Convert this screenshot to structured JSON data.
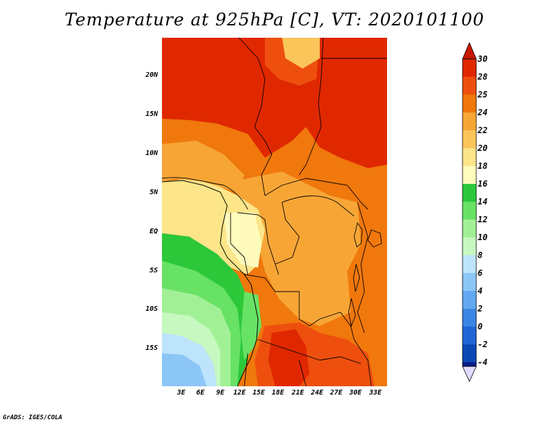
{
  "title": "Temperature at 925hPa [C], VT: 2020101100",
  "footer": "GrADS: IGES/COLA",
  "lat_labels": [
    "20N",
    "15N",
    "10N",
    "5N",
    "EQ",
    "5S",
    "10S",
    "15S"
  ],
  "lon_labels": [
    "3E",
    "6E",
    "9E",
    "12E",
    "15E",
    "18E",
    "21E",
    "24E",
    "27E",
    "30E",
    "33E"
  ],
  "colorbar": {
    "labels": [
      "30",
      "28",
      "25",
      "24",
      "22",
      "20",
      "18",
      "16",
      "14",
      "12",
      "10",
      "8",
      "6",
      "4",
      "2",
      "0",
      "-2",
      "-4"
    ],
    "colors": {
      "c30": "#e02800",
      "c28": "#ee4f0e",
      "c25": "#f0780c",
      "c24": "#f7a636",
      "c22": "#fbc55a",
      "c20": "#fde589",
      "c18": "#fefbbc",
      "c16": "#2cc83a",
      "c14": "#68e264",
      "c12": "#a2f096",
      "c10": "#c6f8c0",
      "c8": "#bde4fb",
      "c6": "#8cc6f7",
      "c4": "#62a8f0",
      "c2": "#3a86e4",
      "c0": "#1f66d5",
      "cm2": "#0c48b5",
      "cm4": "#0a1a8a",
      "top": "#c91800",
      "bottom": "#e0dcff"
    }
  }
}
